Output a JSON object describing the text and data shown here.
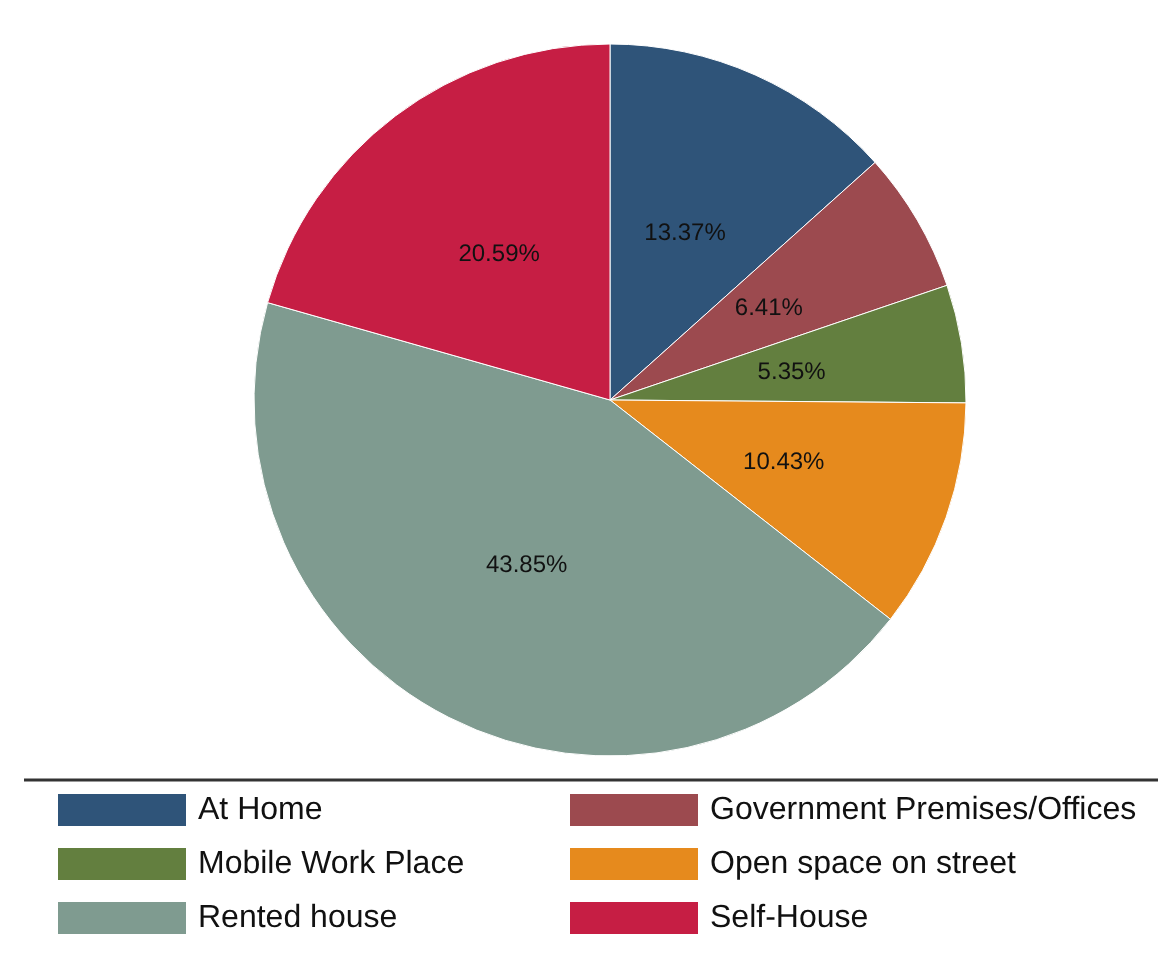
{
  "chart_data": {
    "type": "pie",
    "categories": [
      "At Home",
      "Government Premises/Offices",
      "Mobile Work Place",
      "Open space on street",
      "Rented house",
      "Self-House"
    ],
    "values": [
      13.37,
      6.41,
      5.35,
      10.43,
      43.85,
      20.59
    ],
    "value_labels": [
      "13.37%",
      "6.41%",
      "5.35%",
      "10.43%",
      "43.85%",
      "20.59%"
    ],
    "colors": [
      "#2f5479",
      "#9c4a4f",
      "#637f3f",
      "#e68a1d",
      "#7f9b90",
      "#c61e44"
    ],
    "legend": "bottom"
  }
}
